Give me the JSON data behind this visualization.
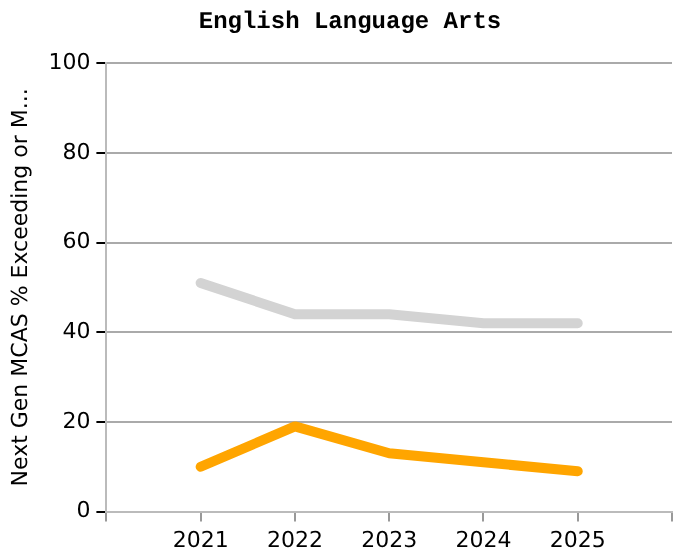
{
  "chart_data": {
    "type": "line",
    "title": "English Language Arts",
    "ylabel": "Next Gen MCAS % Exceeding or M...",
    "x": [
      2021,
      2022,
      2023,
      2024,
      2025
    ],
    "series": [
      {
        "color": "#d3d3d3",
        "values": [
          51,
          44,
          44,
          42,
          42
        ]
      },
      {
        "color": "#ffa500",
        "values": [
          10,
          19,
          13,
          11,
          9
        ]
      }
    ],
    "xlim": [
      2020,
      2026
    ],
    "xticks": [
      {
        "value": 2020,
        "label": null
      },
      2021,
      2022,
      2023,
      2024,
      2025,
      {
        "value": 2026,
        "label": null
      }
    ],
    "ylim": [
      0,
      100
    ],
    "yticks": [
      0,
      20,
      40,
      60,
      80,
      100
    ],
    "grid": "y",
    "legend": false,
    "marker": "none",
    "line_style": "solid"
  }
}
